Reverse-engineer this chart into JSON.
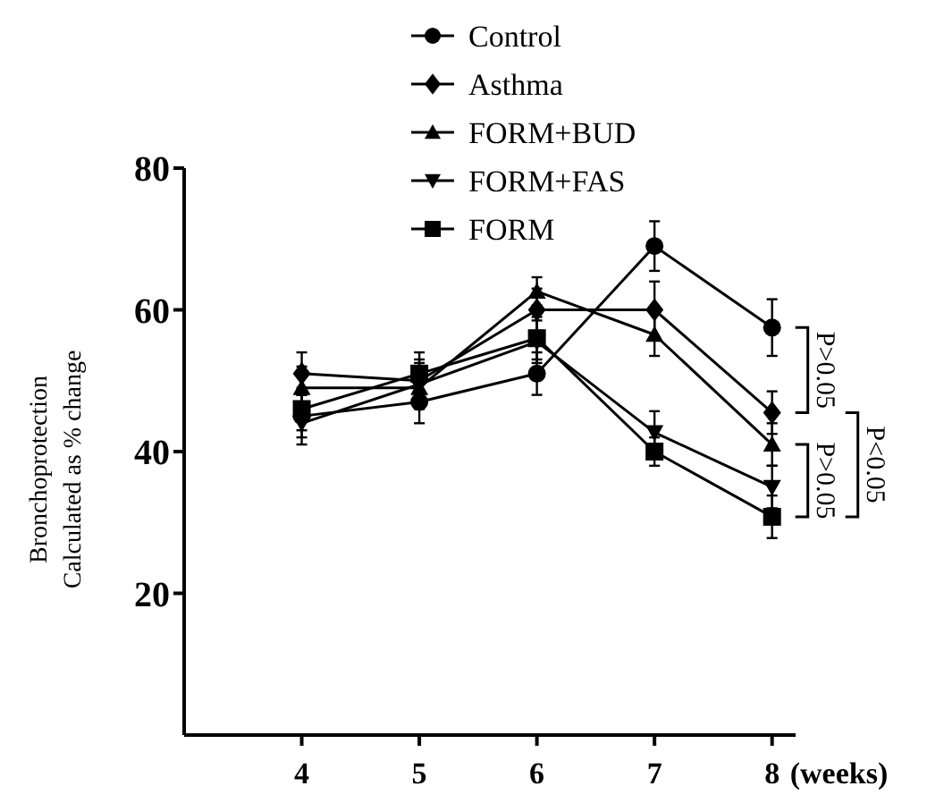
{
  "chart_data": {
    "type": "line",
    "ylabel": "Bronchoprotection\nCalculated as % change",
    "xlabel": "(weeks)",
    "x": [
      4,
      5,
      6,
      7,
      8
    ],
    "xlim": [
      3,
      8.2
    ],
    "xticks": [
      4,
      5,
      6,
      7,
      8
    ],
    "ylim": [
      0,
      80
    ],
    "yticks": [
      20,
      40,
      60,
      80
    ],
    "legend": "top",
    "grid": false,
    "series": [
      {
        "name": "Control",
        "color": "#000000",
        "marker": "circle",
        "values": [
          45,
          47,
          51,
          69,
          57.5
        ],
        "errors": [
          3,
          3,
          3,
          3.5,
          4
        ]
      },
      {
        "name": "Asthma",
        "color": "#000000",
        "marker": "diamond",
        "values": [
          51,
          50,
          60,
          60,
          45.5
        ],
        "errors": [
          3,
          3,
          3,
          4,
          3
        ]
      },
      {
        "name": "FORM+BUD",
        "color": "#000000",
        "marker": "triangle",
        "values": [
          49,
          49,
          62.6,
          56.5,
          41
        ],
        "errors": [
          3,
          3,
          2,
          3,
          3
        ]
      },
      {
        "name": "FORM+FAS",
        "color": "#000000",
        "marker": "triangle-down",
        "values": [
          44,
          49.5,
          55.5,
          42.7,
          35
        ],
        "errors": [
          3,
          3,
          3,
          3,
          3
        ]
      },
      {
        "name": "FORM",
        "color": "#000000",
        "marker": "square",
        "values": [
          46,
          51,
          56,
          40,
          30.8
        ],
        "errors": [
          3,
          3,
          3,
          2,
          3
        ]
      }
    ],
    "annotations": [
      "P>0.05",
      "P>0.05",
      "P<0.05"
    ]
  }
}
